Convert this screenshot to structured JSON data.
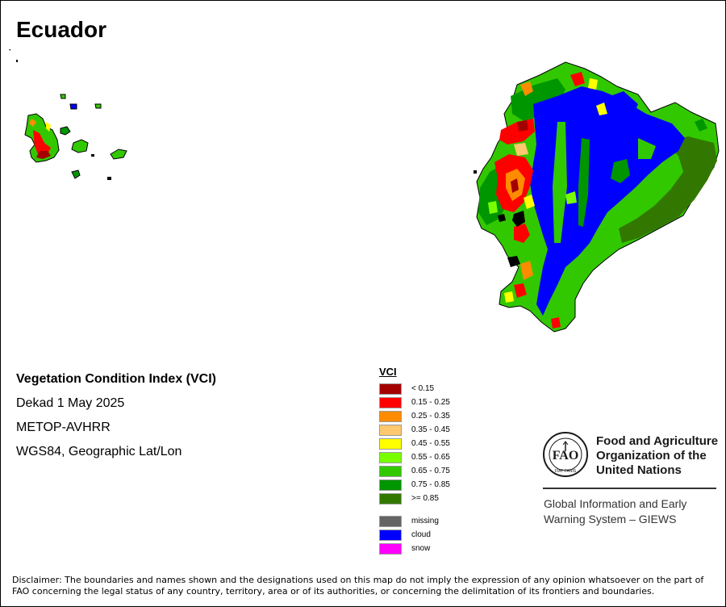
{
  "map": {
    "title": "Ecuador",
    "info_lines": [
      "Vegetation Condition Index (VCI)",
      "Dekad 1 May 2025",
      "METOP-AVHRR",
      "WGS84, Geographic Lat/Lon"
    ]
  },
  "legend": {
    "title": "VCI",
    "classes": [
      {
        "label": "< 0.15",
        "color": "#a50000"
      },
      {
        "label": "0.15 - 0.25",
        "color": "#ff0000"
      },
      {
        "label": "0.25 - 0.35",
        "color": "#ff8c00"
      },
      {
        "label": "0.35 - 0.45",
        "color": "#ffc86e"
      },
      {
        "label": "0.45 - 0.55",
        "color": "#ffff00"
      },
      {
        "label": "0.55 - 0.65",
        "color": "#78ff00"
      },
      {
        "label": "0.65 - 0.75",
        "color": "#32c800"
      },
      {
        "label": "0.75 - 0.85",
        "color": "#009600"
      },
      {
        "label": ">= 0.85",
        "color": "#327800"
      }
    ],
    "special": [
      {
        "label": "missing",
        "color": "#646464"
      },
      {
        "label": "cloud",
        "color": "#0000ff"
      },
      {
        "label": "snow",
        "color": "#ff00ff"
      }
    ]
  },
  "organization": {
    "name": "Food and Agriculture Organization of the United Nations",
    "name_lines": [
      "Food and Agriculture",
      "Organization of the",
      "United Nations"
    ],
    "logo_letters": "FAO",
    "logo_motto": "FIAT PANIS",
    "system_lines": [
      "Global Information and Early",
      "Warning System – GIEWS"
    ]
  },
  "disclaimer": "Disclaimer: The boundaries and names shown and the designations used on this map do not imply the expression of any opinion whatsoever on the part of FAO concerning the legal status of any country, territory, area or of its authorities, or concerning the delimitation of its frontiers and boundaries."
}
